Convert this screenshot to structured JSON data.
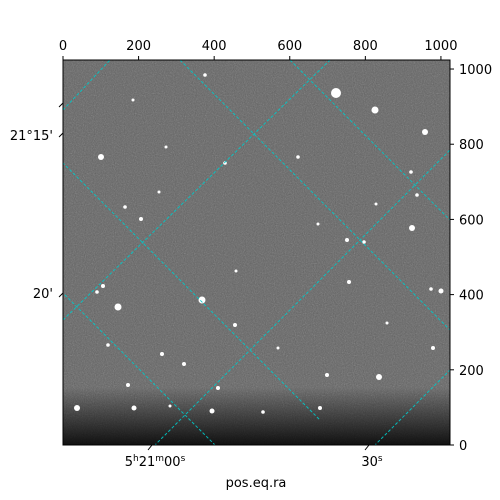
{
  "figure": {
    "x_bottom_label": "pos.eq.ra",
    "pixel_axis_top": {
      "range": [
        0,
        1024
      ],
      "ticks": [
        {
          "value": 0,
          "label": "0"
        },
        {
          "value": 200,
          "label": "200"
        },
        {
          "value": 400,
          "label": "400"
        },
        {
          "value": 600,
          "label": "600"
        },
        {
          "value": 800,
          "label": "800"
        },
        {
          "value": 1000,
          "label": "1000"
        }
      ]
    },
    "pixel_axis_right": {
      "range": [
        0,
        1024
      ],
      "ticks": [
        {
          "value": 0,
          "label": "0"
        },
        {
          "value": 200,
          "label": "200"
        },
        {
          "value": 400,
          "label": "400"
        },
        {
          "value": 600,
          "label": "600"
        },
        {
          "value": 800,
          "label": "800"
        },
        {
          "value": 1000,
          "label": "1000"
        }
      ]
    },
    "ra_ticks": [
      {
        "label_pre": "5",
        "h": "h",
        "mid": "21",
        "m": "m",
        "post": "00",
        "s": "s"
      },
      {
        "label_pre": "",
        "h": "",
        "mid": "",
        "m": "",
        "post": "30",
        "s": "s"
      }
    ],
    "dec_ticks": [
      {
        "label": "21°15'"
      },
      {
        "label": "20'"
      }
    ],
    "grid_color": "#00c8c8",
    "image_colormap": "grayscale"
  }
}
